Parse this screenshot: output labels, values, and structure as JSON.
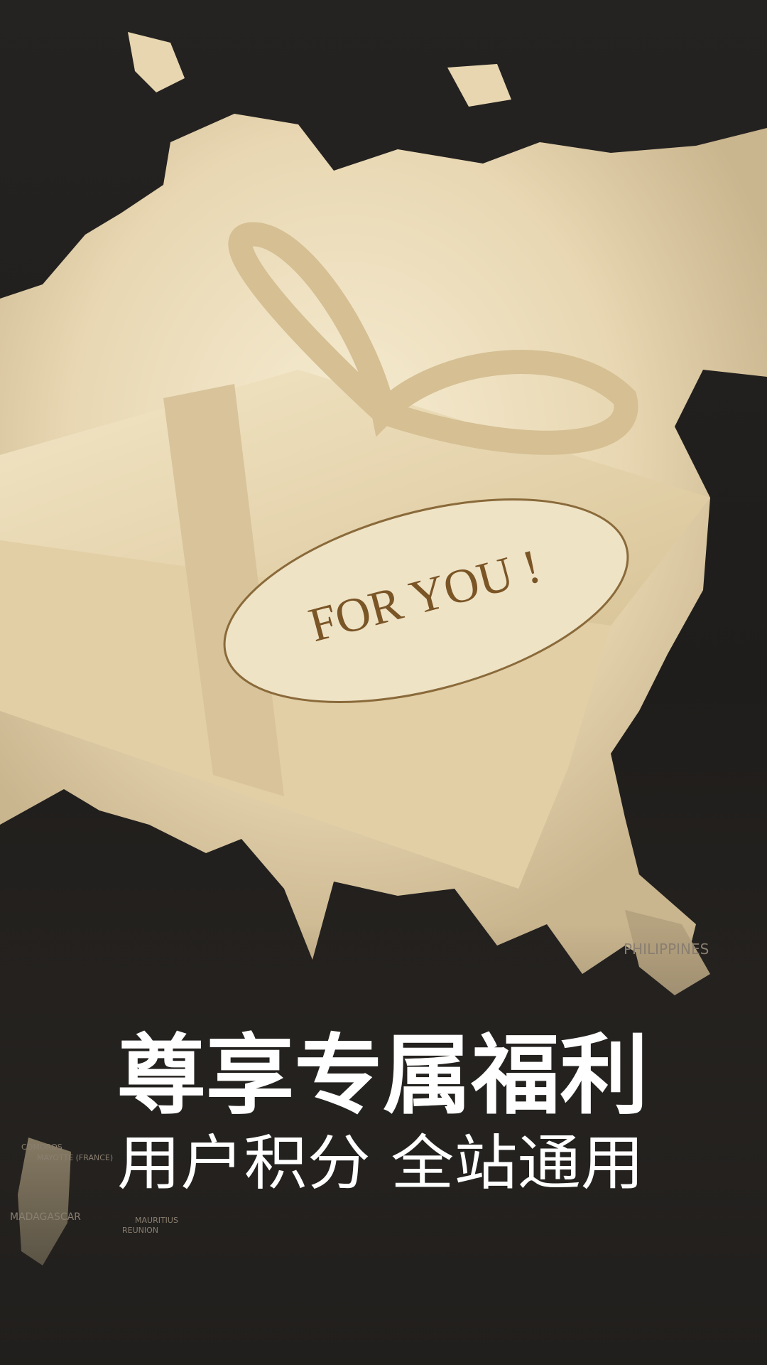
{
  "tag": {
    "text": "FOR YOU !"
  },
  "headline": {
    "title": "尊享专属福利",
    "subtitle": "用户积分 全站通用"
  },
  "map_labels": [
    "PHILIPPINES",
    "COMOROS",
    "MAYOTTE (FRANCE)",
    "MADAGASCAR",
    "MAURITIUS",
    "REUNION"
  ]
}
